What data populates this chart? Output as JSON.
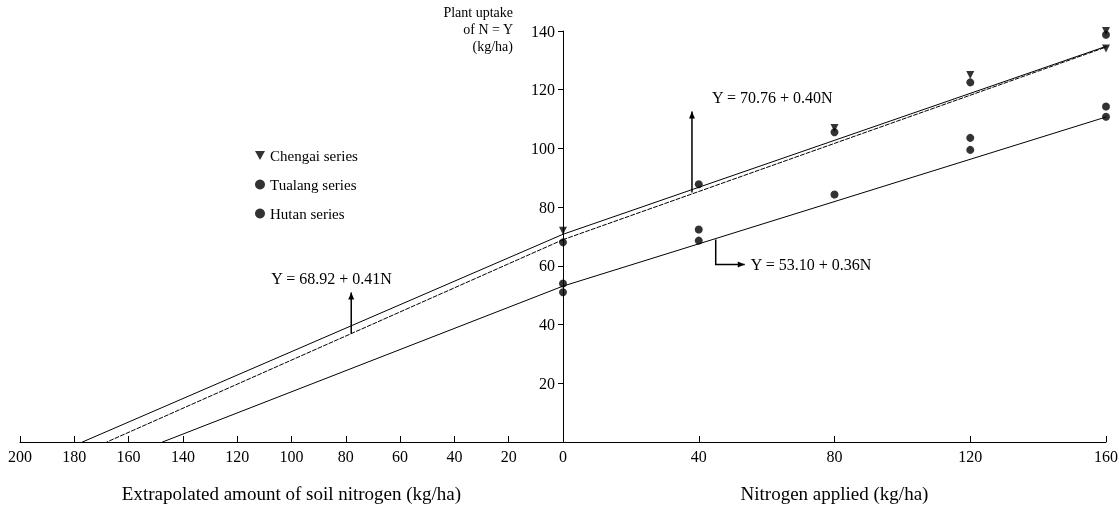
{
  "chart_data": [
    {
      "type": "line",
      "xlabel": "Extrapolated amount of soil nitrogen (kg/ha)",
      "xlim": [
        200,
        0
      ],
      "xticks": [
        200,
        180,
        160,
        140,
        120,
        100,
        80,
        60,
        40,
        20,
        0
      ],
      "ylim": [
        0,
        140
      ],
      "tick_labels": "x",
      "grid": false,
      "legend": false,
      "series": [
        {
          "color": "#000000",
          "line_style": "solid",
          "x": [
            0,
            177
          ],
          "values": [
            70.76,
            0
          ]
        },
        {
          "color": "#000000",
          "line_style": "dashed",
          "x": [
            0,
            168
          ],
          "values": [
            68.92,
            0
          ]
        },
        {
          "color": "#000000",
          "line_style": "solid",
          "x": [
            0,
            147.5
          ],
          "values": [
            53.1,
            0
          ]
        }
      ],
      "annotations": [
        {
          "text": "Y = 68.92 + 0.41N",
          "x": 78,
          "y": 37
        }
      ]
    },
    {
      "type": "scatter",
      "xlabel": "Nitrogen applied (kg/ha)",
      "ylabel": "Plant uptake\nof N = Y\n(kg/ha)",
      "xlim": [
        0,
        160
      ],
      "xticks": [
        40,
        80,
        120,
        160
      ],
      "ylim": [
        0,
        140
      ],
      "yticks": [
        20,
        40,
        60,
        80,
        100,
        120,
        140
      ],
      "grid": false,
      "legend": "left",
      "series": [
        {
          "name": "Chengai series",
          "color": "#000000",
          "marker": "triangle",
          "x": [
            0,
            80,
            120,
            160,
            160
          ],
          "values": [
            72,
            107,
            125,
            140,
            134
          ]
        },
        {
          "name": "Tualang series",
          "color": "#000000",
          "marker": "circle",
          "x": [
            0,
            0,
            40,
            80,
            120,
            160
          ],
          "values": [
            68,
            51,
            87.8,
            105.5,
            122.5,
            138.7
          ]
        },
        {
          "name": "Hutan series",
          "color": "#000000",
          "marker": "circle",
          "x": [
            0,
            40,
            40,
            80,
            120,
            120,
            160,
            160
          ],
          "values": [
            54,
            72.4,
            68.6,
            84.3,
            103.6,
            99.5,
            114.3,
            110.8
          ]
        },
        {
          "type": "line",
          "color": "#000000",
          "line_style": "solid",
          "x": [
            0,
            160
          ],
          "values": [
            70.76,
            134.76
          ]
        },
        {
          "type": "line",
          "color": "#000000",
          "line_style": "dashed",
          "x": [
            0,
            160
          ],
          "values": [
            68.92,
            134.52
          ]
        },
        {
          "type": "line",
          "color": "#000000",
          "line_style": "solid",
          "x": [
            0,
            160
          ],
          "values": [
            53.1,
            110.7
          ]
        }
      ],
      "annotations": [
        {
          "text": "Y = 70.76 + 0.40N",
          "x": 38,
          "y": 85
        },
        {
          "text": "Y = 53.10 + 0.36N",
          "x": 45,
          "y": 69
        }
      ]
    }
  ]
}
